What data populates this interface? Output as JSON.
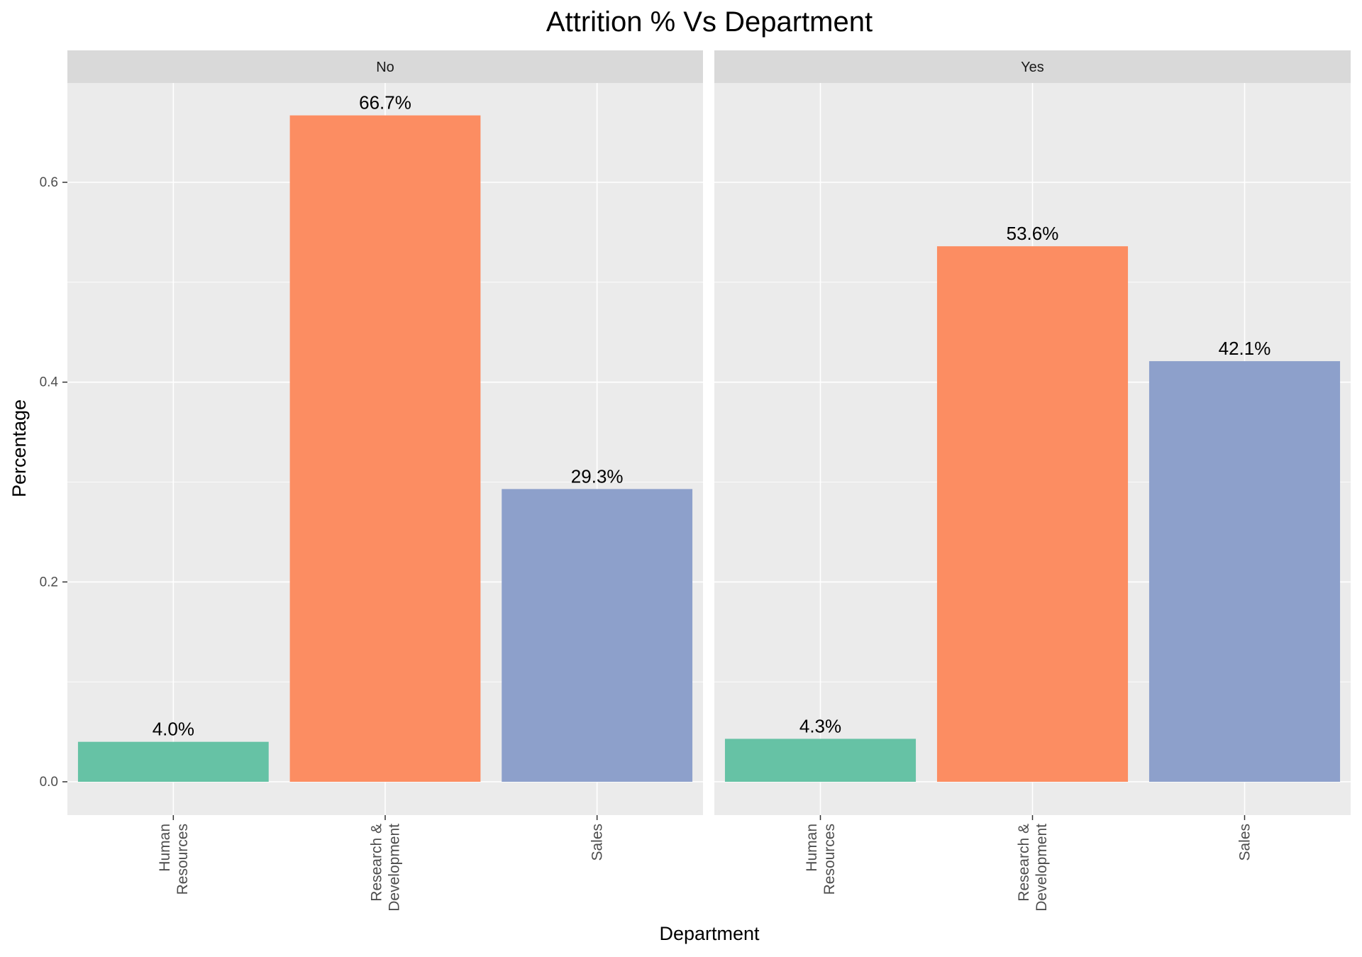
{
  "chart_data": {
    "type": "bar",
    "title": "Attrition  % Vs Department",
    "xlabel": "Department",
    "ylabel": "Percentage",
    "ylim": [
      0,
      0.7
    ],
    "yticks": [
      "0.0",
      "0.2",
      "0.4",
      "0.6"
    ],
    "grid": true,
    "categories": [
      [
        "Human",
        "Resources"
      ],
      [
        "Research &",
        "Development"
      ],
      [
        "Sales"
      ]
    ],
    "colors": [
      "#66C2A5",
      "#FC8D62",
      "#8DA0CB"
    ],
    "panels": [
      {
        "name": "No",
        "values": [
          0.04,
          0.667,
          0.293
        ],
        "labels": [
          "4.0%",
          "66.7%",
          "29.3%"
        ]
      },
      {
        "name": "Yes",
        "values": [
          0.043,
          0.536,
          0.421
        ],
        "labels": [
          "4.3%",
          "53.6%",
          "42.1%"
        ]
      }
    ]
  }
}
